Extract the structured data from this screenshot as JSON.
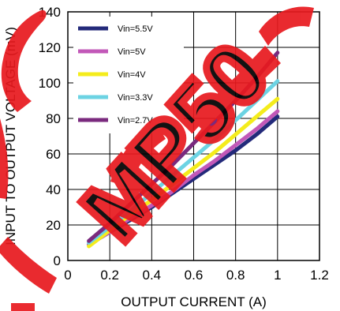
{
  "watermark": {
    "text": "MP50",
    "color": "#e8191e"
  },
  "chart_data": {
    "type": "line",
    "xlabel": "OUTPUT CURRENT (A)",
    "ylabel": "INPUT TO OUTPUT VOLTAGE (mV)",
    "xlim": [
      0,
      1.2
    ],
    "ylim": [
      0,
      140
    ],
    "xticks": [
      "0",
      "0.2",
      "0.4",
      "0.6",
      "0.8",
      "1",
      "1.2"
    ],
    "yticks": [
      "0",
      "20",
      "40",
      "60",
      "80",
      "100",
      "120",
      "140"
    ],
    "grid": true,
    "legend_position": "top-left",
    "series": [
      {
        "name": "Vin=5.5V",
        "color": "#232a7a",
        "x": [
          0.1,
          0.2,
          0.3,
          0.4,
          0.5,
          0.6,
          0.7,
          0.8,
          0.9,
          1.0
        ],
        "y": [
          9,
          16,
          23,
          30,
          38,
          46,
          54,
          62,
          71,
          81
        ]
      },
      {
        "name": "Vin=5V",
        "color": "#c258b8",
        "x": [
          0.1,
          0.2,
          0.3,
          0.4,
          0.5,
          0.6,
          0.7,
          0.8,
          0.9,
          1.0
        ],
        "y": [
          9,
          16,
          24,
          31,
          39,
          48,
          56,
          65,
          74,
          84
        ]
      },
      {
        "name": "Vin=4V",
        "color": "#f4ec1c",
        "x": [
          0.1,
          0.2,
          0.3,
          0.4,
          0.5,
          0.6,
          0.7,
          0.8,
          0.9,
          1.0
        ],
        "y": [
          8,
          17,
          26,
          34,
          43,
          52,
          61,
          71,
          81,
          91
        ]
      },
      {
        "name": "Vin=3.3V",
        "color": "#6cd3e3",
        "x": [
          0.1,
          0.2,
          0.3,
          0.4,
          0.5,
          0.6,
          0.7,
          0.8,
          0.9,
          1.0
        ],
        "y": [
          10,
          19,
          28,
          38,
          48,
          58,
          68,
          79,
          90,
          101
        ]
      },
      {
        "name": "Vin=2.7V",
        "color": "#7a2a7e",
        "x": [
          0.1,
          0.2,
          0.3,
          0.4,
          0.5,
          0.6,
          0.7,
          0.8,
          0.9,
          1.0
        ],
        "y": [
          11,
          21,
          32,
          43,
          54,
          66,
          78,
          90,
          103,
          117
        ]
      }
    ]
  }
}
